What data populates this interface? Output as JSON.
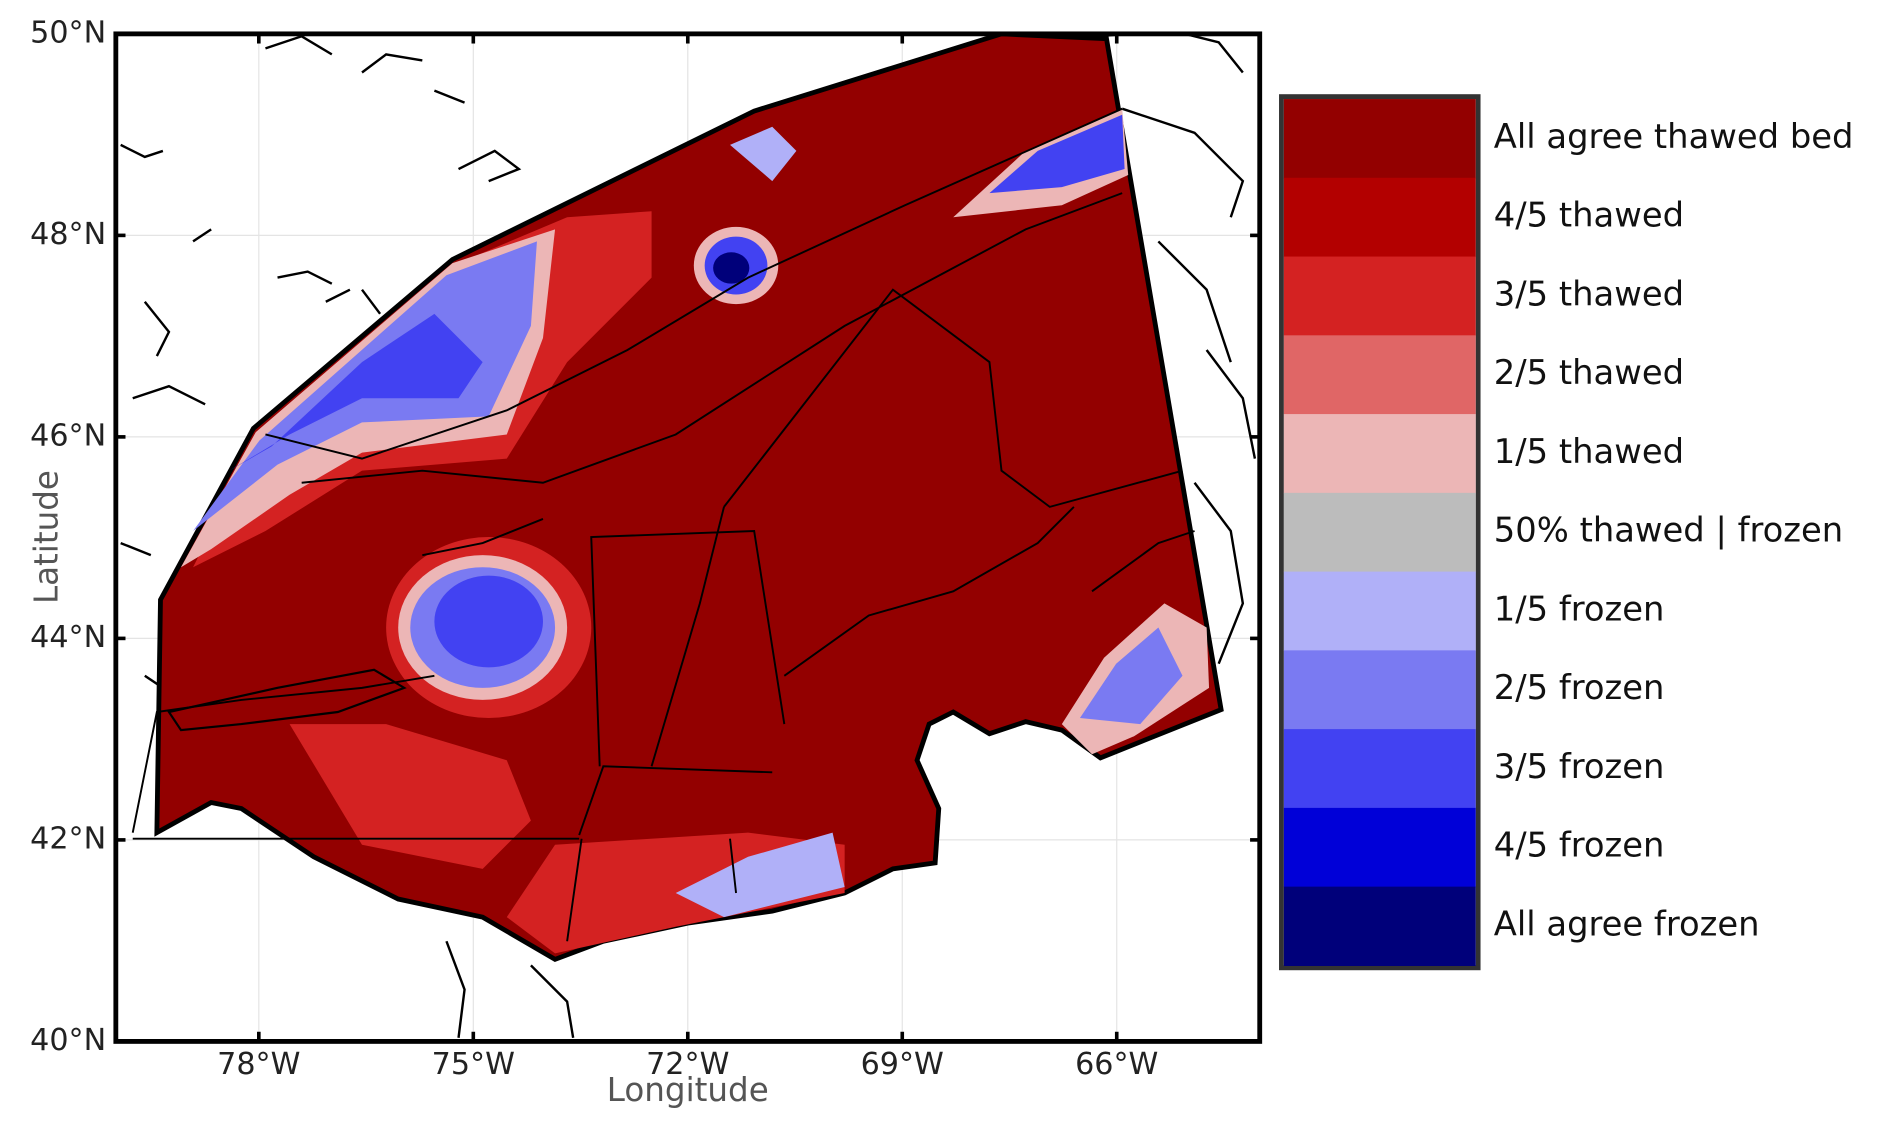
{
  "map": {
    "xlabel": "Longitude",
    "ylabel": "Latitude",
    "xlim": [
      -80,
      -64
    ],
    "ylim": [
      40,
      50
    ],
    "xticks": [
      {
        "value": -78,
        "label": "78°W"
      },
      {
        "value": -75,
        "label": "75°W"
      },
      {
        "value": -72,
        "label": "72°W"
      },
      {
        "value": -69,
        "label": "69°W"
      },
      {
        "value": -66,
        "label": "66°W"
      }
    ],
    "yticks": [
      {
        "value": 40,
        "label": "40°N"
      },
      {
        "value": 42,
        "label": "42°N"
      },
      {
        "value": 44,
        "label": "44°N"
      },
      {
        "value": 46,
        "label": "46°N"
      },
      {
        "value": 48,
        "label": "48°N"
      },
      {
        "value": 50,
        "label": "50°N"
      }
    ],
    "grid": true
  },
  "legend": {
    "entries": [
      {
        "label": "All agree thawed bed",
        "color": "#930000"
      },
      {
        "label": "4/5 thawed",
        "color": "#b30000"
      },
      {
        "label": "3/5 thawed",
        "color": "#d42222"
      },
      {
        "label": "2/5 thawed",
        "color": "#e06666"
      },
      {
        "label": "1/5 thawed",
        "color": "#ecb6b6"
      },
      {
        "label": "50% thawed | frozen",
        "color": "#bcbcbc"
      },
      {
        "label": "1/5 frozen",
        "color": "#b0b0f8"
      },
      {
        "label": "2/5 frozen",
        "color": "#7a7af2"
      },
      {
        "label": "3/5 frozen",
        "color": "#4242f2"
      },
      {
        "label": "4/5 frozen",
        "color": "#0000d8"
      },
      {
        "label": "All agree frozen",
        "color": "#00007a"
      }
    ]
  }
}
